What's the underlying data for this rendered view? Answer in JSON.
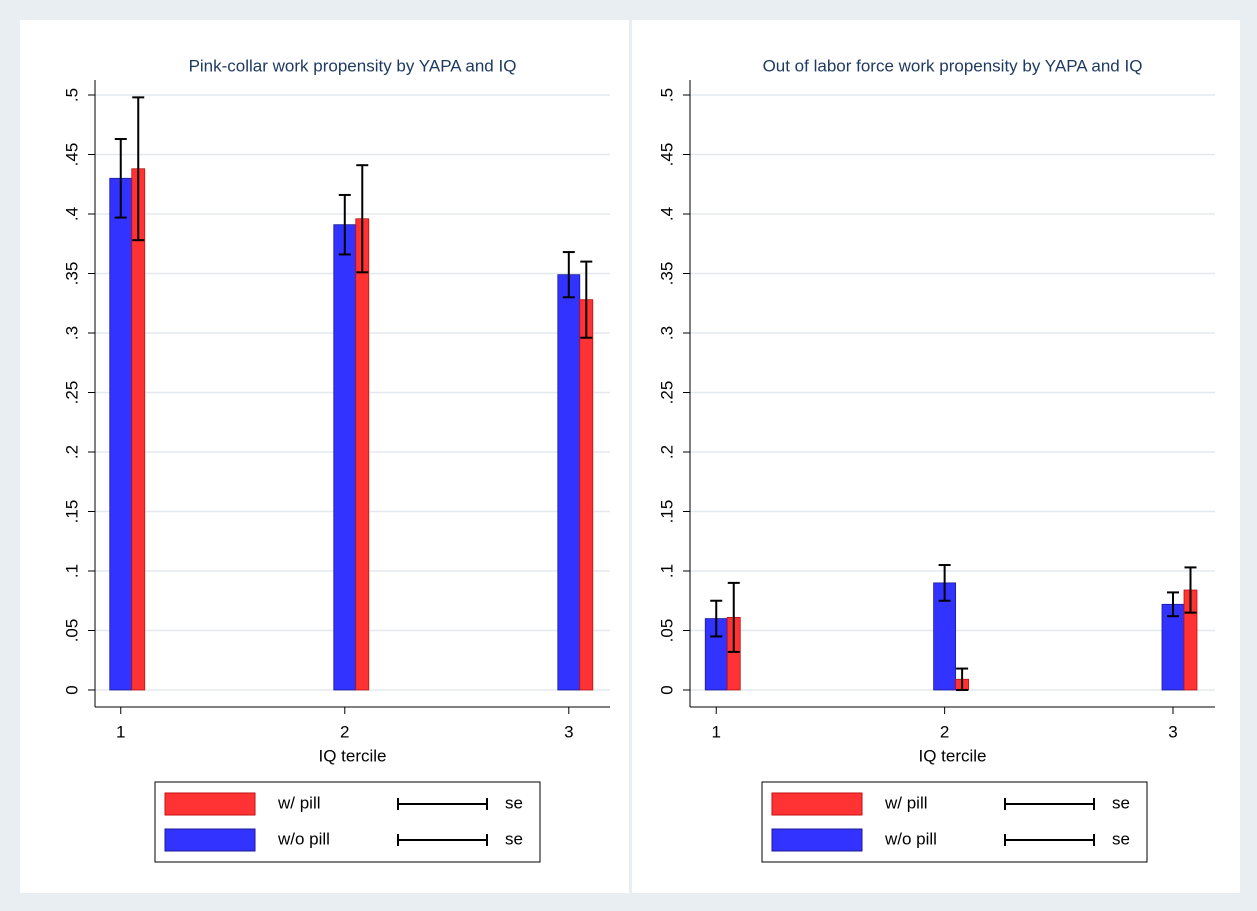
{
  "chart_data": [
    {
      "type": "bar",
      "title": "Pink-collar work propensity by YAPA and IQ",
      "x_label": "IQ tercile",
      "categories": [
        "1",
        "2",
        "3"
      ],
      "series": [
        {
          "name": "w/ pill",
          "color": "#ff3333",
          "values": [
            0.438,
            0.396,
            0.328
          ],
          "errors": [
            0.06,
            0.045,
            0.032
          ],
          "error_name": "se"
        },
        {
          "name": "w/o pill",
          "color": "#3333ff",
          "values": [
            0.43,
            0.391,
            0.349
          ],
          "errors": [
            0.033,
            0.025,
            0.019
          ],
          "error_name": "se"
        }
      ],
      "ylim": [
        -0.0143,
        0.5126
      ],
      "yticks": [
        0,
        {
          "value": 0.05,
          "label": ".05"
        },
        {
          "value": 0.1,
          "label": ".1"
        },
        {
          "value": 0.15,
          "label": ".15"
        },
        {
          "value": 0.2,
          "label": ".2"
        },
        {
          "value": 0.25,
          "label": ".25"
        },
        {
          "value": 0.3,
          "label": ".3"
        },
        {
          "value": 0.35,
          "label": ".35"
        },
        {
          "value": 0.4,
          "label": ".4"
        },
        {
          "value": 0.45,
          "label": ".45"
        },
        {
          "value": 0.5,
          "label": ".5"
        }
      ],
      "grid": true,
      "legend": "bottom"
    },
    {
      "type": "bar",
      "title": "Out of labor force work propensity by YAPA and IQ",
      "x_label": "IQ tercile",
      "categories": [
        "1",
        "2",
        "3"
      ],
      "series": [
        {
          "name": "w/ pill",
          "color": "#ff3333",
          "values": [
            0.061,
            0.009,
            0.084
          ],
          "errors": [
            0.029,
            0.009,
            0.019
          ],
          "error_name": "se"
        },
        {
          "name": "w/o pill",
          "color": "#3333ff",
          "values": [
            0.06,
            0.09,
            0.072
          ],
          "errors": [
            0.015,
            0.015,
            0.01
          ],
          "error_name": "se"
        }
      ],
      "ylim": [
        -0.0143,
        0.5126
      ],
      "yticks": [
        0,
        {
          "value": 0.05,
          "label": ".05"
        },
        {
          "value": 0.1,
          "label": ".1"
        },
        {
          "value": 0.15,
          "label": ".15"
        },
        {
          "value": 0.2,
          "label": ".2"
        },
        {
          "value": 0.25,
          "label": ".25"
        },
        {
          "value": 0.3,
          "label": ".3"
        },
        {
          "value": 0.35,
          "label": ".35"
        },
        {
          "value": 0.4,
          "label": ".4"
        },
        {
          "value": 0.45,
          "label": ".45"
        },
        {
          "value": 0.5,
          "label": ".5"
        }
      ],
      "grid": true,
      "legend": "bottom"
    }
  ]
}
